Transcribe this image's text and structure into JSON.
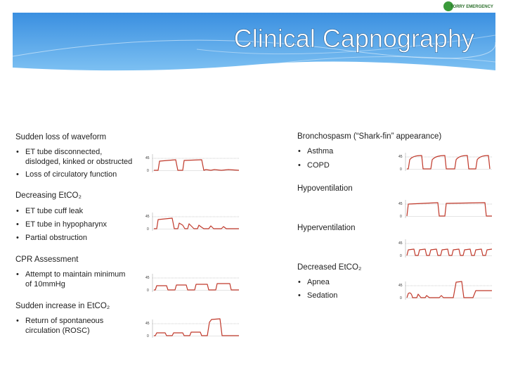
{
  "title": "Clinical Capnography",
  "logo": "TORRY EMERGENCY",
  "left": [
    {
      "heading": "Sudden loss of waveform",
      "bullets": [
        [
          "ET tube disconnected,",
          "dislodged, kinked or obstructed"
        ],
        [
          "Loss of circulatory function"
        ]
      ],
      "graph_ticks": [
        "45",
        "0"
      ]
    },
    {
      "heading": "Decreasing EtCO₂",
      "bullets": [
        [
          "ET tube cuff leak"
        ],
        [
          "ET tube in hypopharynx"
        ],
        [
          "Partial obstruction"
        ]
      ],
      "graph_ticks": [
        "45",
        "0"
      ]
    },
    {
      "heading": "CPR Assessment",
      "bullets": [
        [
          "Attempt to maintain minimum",
          "of 10mmHg"
        ]
      ],
      "graph_ticks": [
        "45",
        "0"
      ]
    },
    {
      "heading": "Sudden increase in EtCO₂",
      "bullets": [
        [
          "Return of spontaneous",
          "circulation (ROSC)"
        ]
      ],
      "graph_ticks": [
        "45",
        "0"
      ]
    }
  ],
  "right": [
    {
      "heading": "Bronchospasm (“Shark-fin” appearance)",
      "bullets": [
        [
          "Asthma"
        ],
        [
          "COPD"
        ]
      ],
      "graph_ticks": [
        "45",
        "0"
      ]
    },
    {
      "heading": "Hypoventilation",
      "bullets": [],
      "graph_ticks": [
        "45",
        "0"
      ]
    },
    {
      "heading": "Hyperventilation",
      "bullets": [],
      "graph_ticks": [
        "45",
        "0"
      ]
    },
    {
      "heading": "Decreased EtCO₂",
      "bullets": [
        [
          "Apnea"
        ],
        [
          "Sedation"
        ]
      ],
      "graph_ticks": [
        "45",
        "0"
      ]
    }
  ]
}
